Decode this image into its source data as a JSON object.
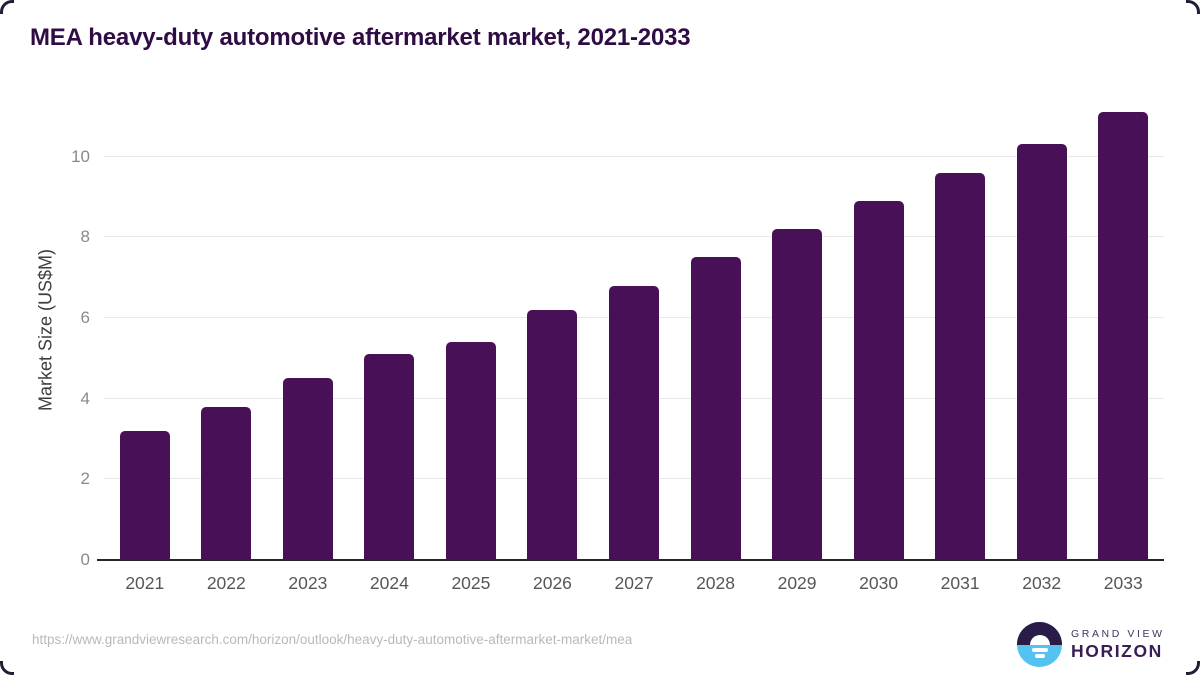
{
  "header": {
    "title": "MEA heavy-duty automotive aftermarket market, 2021-2033"
  },
  "chart_data": {
    "type": "bar",
    "title": "MEA heavy-duty automotive aftermarket market, 2021-2033",
    "categories": [
      "2021",
      "2022",
      "2023",
      "2024",
      "2025",
      "2026",
      "2027",
      "2028",
      "2029",
      "2030",
      "2031",
      "2032",
      "2033"
    ],
    "values": [
      3.2,
      3.8,
      4.5,
      5.1,
      5.4,
      6.2,
      6.8,
      7.5,
      8.2,
      8.9,
      9.6,
      10.3,
      11.1
    ],
    "xlabel": "",
    "ylabel": "Market Size (US$M)",
    "ylim": [
      0,
      11.4
    ],
    "yticks": [
      0,
      2,
      4,
      6,
      8,
      10
    ],
    "grid": "horizontal",
    "legend": "none",
    "bar_color": "#481057"
  },
  "footer": {
    "source_url": "https://www.grandviewresearch.com/horizon/outlook/heavy-duty-automotive-aftermarket-market/mea",
    "logo": {
      "icon": "horizon-sun-icon",
      "top_text": "GRAND VIEW",
      "bottom_text": "HORIZON",
      "dark_color": "#2b1b47",
      "blue_color": "#55c3f0"
    }
  }
}
